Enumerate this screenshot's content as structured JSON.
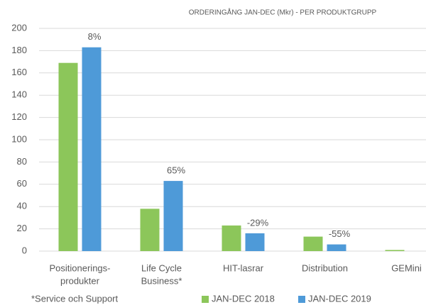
{
  "chart_data": {
    "type": "bar",
    "title": "ORDERINGÅNG JAN-DEC (Mkr) - PER PRODUKTGRUPP",
    "categories": [
      [
        "Positionerings-",
        "produkter"
      ],
      [
        "Life Cycle",
        "Business*"
      ],
      [
        "HIT-lasrar"
      ],
      [
        "Distribution"
      ],
      [
        "GEMini"
      ]
    ],
    "series": [
      {
        "name": "JAN-DEC 2018",
        "color": "#8cc65a",
        "values": [
          169,
          38,
          23,
          13,
          1
        ]
      },
      {
        "name": "JAN-DEC 2019",
        "color": "#4e9ad8",
        "values": [
          183,
          63,
          16,
          6,
          0
        ]
      }
    ],
    "annotations": [
      "8%",
      "65%",
      "-29%",
      "-55%"
    ],
    "footnote": "*Service och Support",
    "ylim": [
      0,
      200
    ],
    "yticks": [
      0,
      20,
      40,
      60,
      80,
      100,
      120,
      140,
      160,
      180,
      200
    ],
    "grid": true,
    "legend": "bottom"
  }
}
